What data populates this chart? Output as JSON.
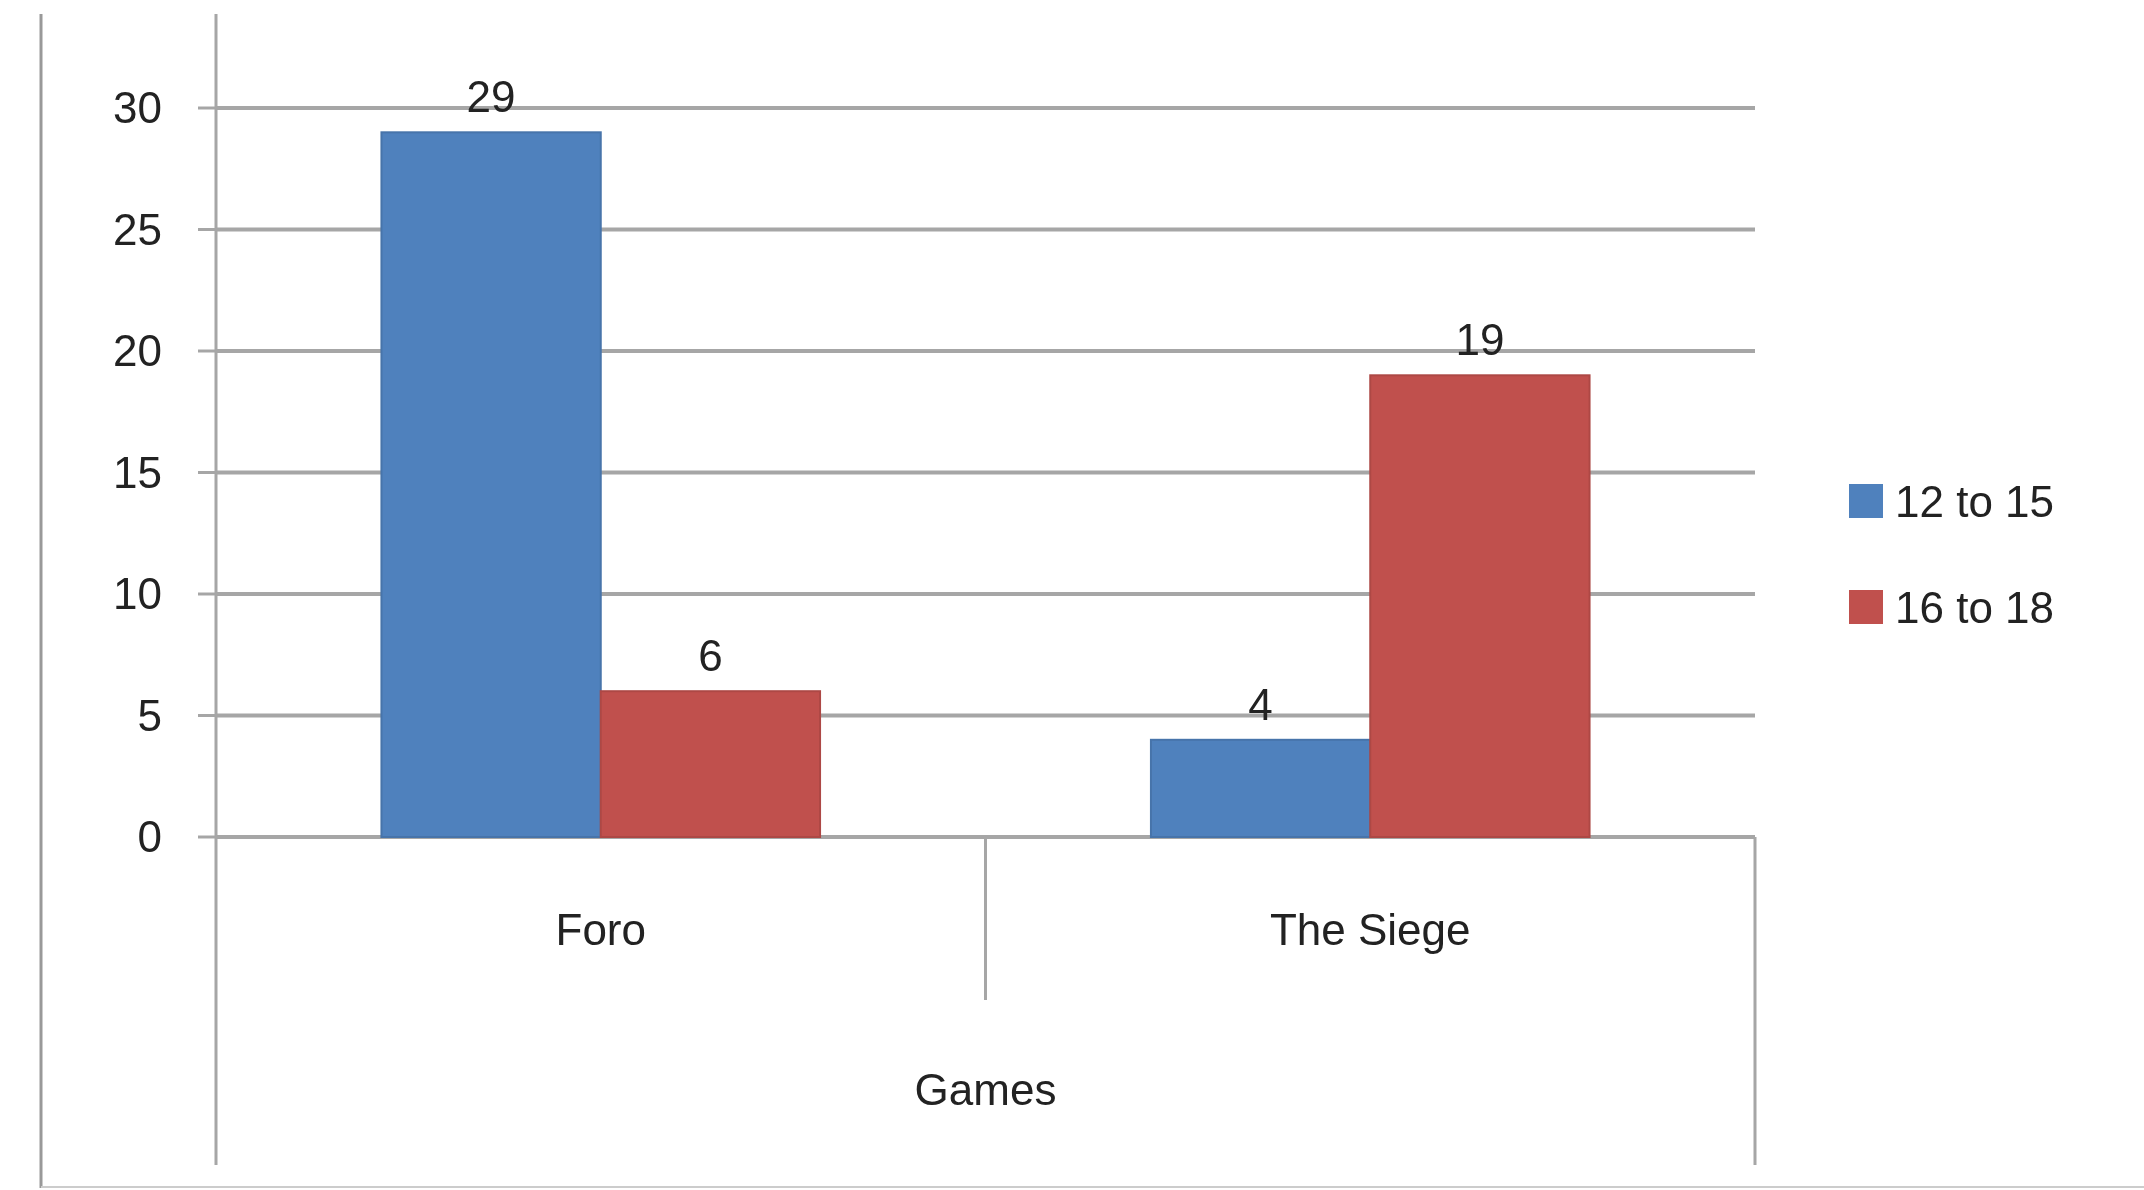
{
  "chart_data": {
    "type": "bar",
    "xlabel": "Games",
    "categories": [
      "Foro",
      "The Siege"
    ],
    "series": [
      {
        "name": "12 to 15",
        "color": "#4f81bd",
        "values": [
          29,
          4
        ]
      },
      {
        "name": "16 to 18",
        "color": "#c0504d",
        "values": [
          6,
          19
        ]
      }
    ],
    "ylim": [
      0,
      30
    ],
    "yticks": [
      0,
      5,
      10,
      15,
      20,
      25,
      30
    ],
    "grid": "y",
    "legend": "right",
    "data_labels": true
  }
}
